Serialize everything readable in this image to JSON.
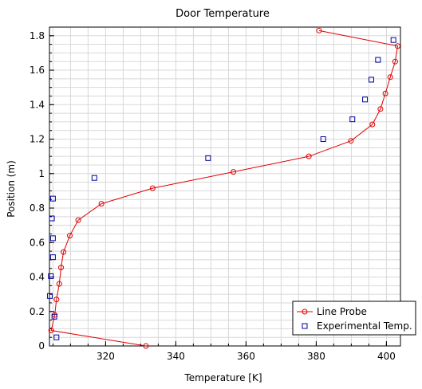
{
  "chart_data": {
    "type": "line",
    "title": "Door Temperature",
    "xlabel": "Temperature [K]",
    "ylabel": "Position (m)",
    "xlim": [
      304,
      404
    ],
    "ylim": [
      0,
      1.85
    ],
    "x_ticks": [
      {
        "value": 320,
        "label": "320"
      },
      {
        "value": 340,
        "label": "340"
      },
      {
        "value": 360,
        "label": "360"
      },
      {
        "value": 380,
        "label": "380"
      },
      {
        "value": 400,
        "label": "400"
      }
    ],
    "y_ticks": [
      {
        "value": 0,
        "label": "0"
      },
      {
        "value": 0.2,
        "label": "0.2"
      },
      {
        "value": 0.4,
        "label": "0.4"
      },
      {
        "value": 0.6,
        "label": "0.6"
      },
      {
        "value": 0.8,
        "label": "0.8"
      },
      {
        "value": 1.0,
        "label": "1"
      },
      {
        "value": 1.2,
        "label": "1.2"
      },
      {
        "value": 1.4,
        "label": "1.4"
      },
      {
        "value": 1.6,
        "label": "1.6"
      },
      {
        "value": 1.8,
        "label": "1.8"
      }
    ],
    "grid": true,
    "legend_position": "bottom-right",
    "series": [
      {
        "name": "Line Probe",
        "style": "line-with-circle-markers",
        "color": "#e00000",
        "points": [
          {
            "x": 331.5,
            "y": 0.0
          },
          {
            "x": 304.5,
            "y": 0.09
          },
          {
            "x": 305.5,
            "y": 0.18
          },
          {
            "x": 306.0,
            "y": 0.27
          },
          {
            "x": 306.8,
            "y": 0.36
          },
          {
            "x": 307.3,
            "y": 0.455
          },
          {
            "x": 308.0,
            "y": 0.545
          },
          {
            "x": 309.8,
            "y": 0.64
          },
          {
            "x": 312.2,
            "y": 0.73
          },
          {
            "x": 318.8,
            "y": 0.825
          },
          {
            "x": 333.4,
            "y": 0.915
          },
          {
            "x": 356.4,
            "y": 1.01
          },
          {
            "x": 377.9,
            "y": 1.1
          },
          {
            "x": 389.9,
            "y": 1.19
          },
          {
            "x": 396.0,
            "y": 1.285
          },
          {
            "x": 398.3,
            "y": 1.375
          },
          {
            "x": 399.7,
            "y": 1.465
          },
          {
            "x": 401.1,
            "y": 1.56
          },
          {
            "x": 402.5,
            "y": 1.65
          },
          {
            "x": 403.2,
            "y": 1.74
          },
          {
            "x": 380.8,
            "y": 1.83
          }
        ]
      },
      {
        "name": "Experimental Temp.",
        "style": "square-markers",
        "color": "#0000a0",
        "points": [
          {
            "x": 306.0,
            "y": 0.05
          },
          {
            "x": 305.4,
            "y": 0.17
          },
          {
            "x": 304.1,
            "y": 0.29
          },
          {
            "x": 304.4,
            "y": 0.405
          },
          {
            "x": 305.0,
            "y": 0.515
          },
          {
            "x": 305.0,
            "y": 0.625
          },
          {
            "x": 304.7,
            "y": 0.74
          },
          {
            "x": 305.0,
            "y": 0.855
          },
          {
            "x": 316.8,
            "y": 0.975
          },
          {
            "x": 349.2,
            "y": 1.09
          },
          {
            "x": 382.0,
            "y": 1.2
          },
          {
            "x": 390.3,
            "y": 1.315
          },
          {
            "x": 393.9,
            "y": 1.43
          },
          {
            "x": 395.7,
            "y": 1.545
          },
          {
            "x": 397.6,
            "y": 1.66
          },
          {
            "x": 402.0,
            "y": 1.775
          }
        ]
      }
    ]
  }
}
